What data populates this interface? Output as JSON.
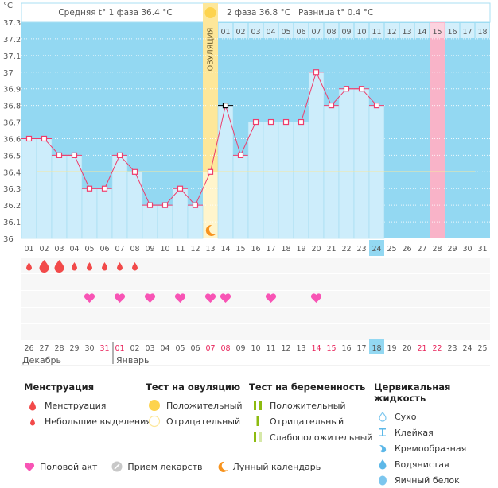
{
  "header": {
    "unit": "°C",
    "phase1_label": "Средняя t° 1 фаза 36.4 °C",
    "phase2_label": "2 фаза 36.8 °C",
    "diff_label": "Разница t° 0.4 °C",
    "ovulation_label": "ОВУЛЯЦИЯ"
  },
  "colors": {
    "bg_blue": "#93d8f2",
    "bar_fill": "#cdedfb",
    "line": "#ee3d6c",
    "ovulation": "#fde79a",
    "ovulation_light": "#fff5cc",
    "pink_day": "#f9b3c8",
    "cover_line": "#f5e8a0",
    "blood": "#f24a4a",
    "heart": "#f854b5",
    "moon": "#f7931e",
    "today": "#93d8f2",
    "weekend": "#e8245b"
  },
  "chart_data": {
    "type": "line",
    "title": "",
    "ylabel": "°C",
    "ylim": [
      36.0,
      37.3
    ],
    "yticks": [
      "36",
      "36.1",
      "36.2",
      "36.3",
      "36.4",
      "36.5",
      "36.6",
      "36.7",
      "36.8",
      "36.9",
      "37",
      "37.1",
      "37.2",
      "37.3"
    ],
    "cycle_days": [
      "01",
      "02",
      "03",
      "04",
      "05",
      "06",
      "07",
      "08",
      "09",
      "10",
      "11",
      "12",
      "13",
      "14",
      "15",
      "16",
      "17",
      "18",
      "19",
      "20",
      "21",
      "22",
      "23",
      "24",
      "25",
      "26",
      "27",
      "28",
      "29",
      "30",
      "31"
    ],
    "calendar_dates": [
      "26",
      "27",
      "28",
      "29",
      "30",
      "31",
      "01",
      "02",
      "03",
      "04",
      "05",
      "06",
      "07",
      "08",
      "09",
      "10",
      "11",
      "12",
      "13",
      "14",
      "15",
      "16",
      "17",
      "18",
      "19",
      "20",
      "21",
      "22",
      "23",
      "24",
      "25"
    ],
    "weekend_dates_idx": [
      5,
      6,
      12,
      13,
      19,
      20,
      26,
      27
    ],
    "months": [
      {
        "label": "Декабрь",
        "start": 0
      },
      {
        "label": "Январь",
        "start": 6
      }
    ],
    "temperatures": [
      36.6,
      36.6,
      36.5,
      36.5,
      36.3,
      36.3,
      36.5,
      36.4,
      36.2,
      36.2,
      36.3,
      36.2,
      36.4,
      36.8,
      36.5,
      36.7,
      36.7,
      36.7,
      36.7,
      37.0,
      36.8,
      36.9,
      36.9,
      36.8
    ],
    "cover_line": 36.4,
    "ovulation_day": 13,
    "selected_day": 14,
    "today_day": 24,
    "expected_period_day": 28,
    "phase2_day_numbers": [
      "01",
      "02",
      "03",
      "04",
      "05",
      "06",
      "07",
      "08",
      "09",
      "10",
      "11",
      "12",
      "13",
      "14",
      "15",
      "16",
      "17",
      "18"
    ],
    "menstruation": [
      {
        "day": 1,
        "type": "light"
      },
      {
        "day": 2,
        "type": "heavy"
      },
      {
        "day": 3,
        "type": "heavy"
      },
      {
        "day": 4,
        "type": "light"
      },
      {
        "day": 5,
        "type": "light"
      },
      {
        "day": 6,
        "type": "light"
      },
      {
        "day": 7,
        "type": "light"
      },
      {
        "day": 8,
        "type": "light"
      }
    ],
    "intercourse_days": [
      5,
      7,
      9,
      11,
      13,
      14,
      17,
      20
    ],
    "moon_day": 13,
    "ovulation_test_positive_day": 13
  },
  "legend": {
    "menstruation": {
      "title": "Менструация",
      "items": [
        "Менструация",
        "Небольшие выделения"
      ]
    },
    "ovulation_test": {
      "title": "Тест на овуляцию",
      "items": [
        "Положительный",
        "Отрицательный"
      ]
    },
    "pregnancy_test": {
      "title": "Тест на беременность",
      "items": [
        "Положительный",
        "Отрицательный",
        "Слабоположительный"
      ]
    },
    "cervical": {
      "title": "Цервикальная жидкость",
      "items": [
        "Сухо",
        "Клейкая",
        "Кремообразная",
        "Водянистая",
        "Яичный белок"
      ]
    },
    "bottom": [
      "Половой акт",
      "Прием лекарств",
      "Лунный календарь"
    ]
  }
}
